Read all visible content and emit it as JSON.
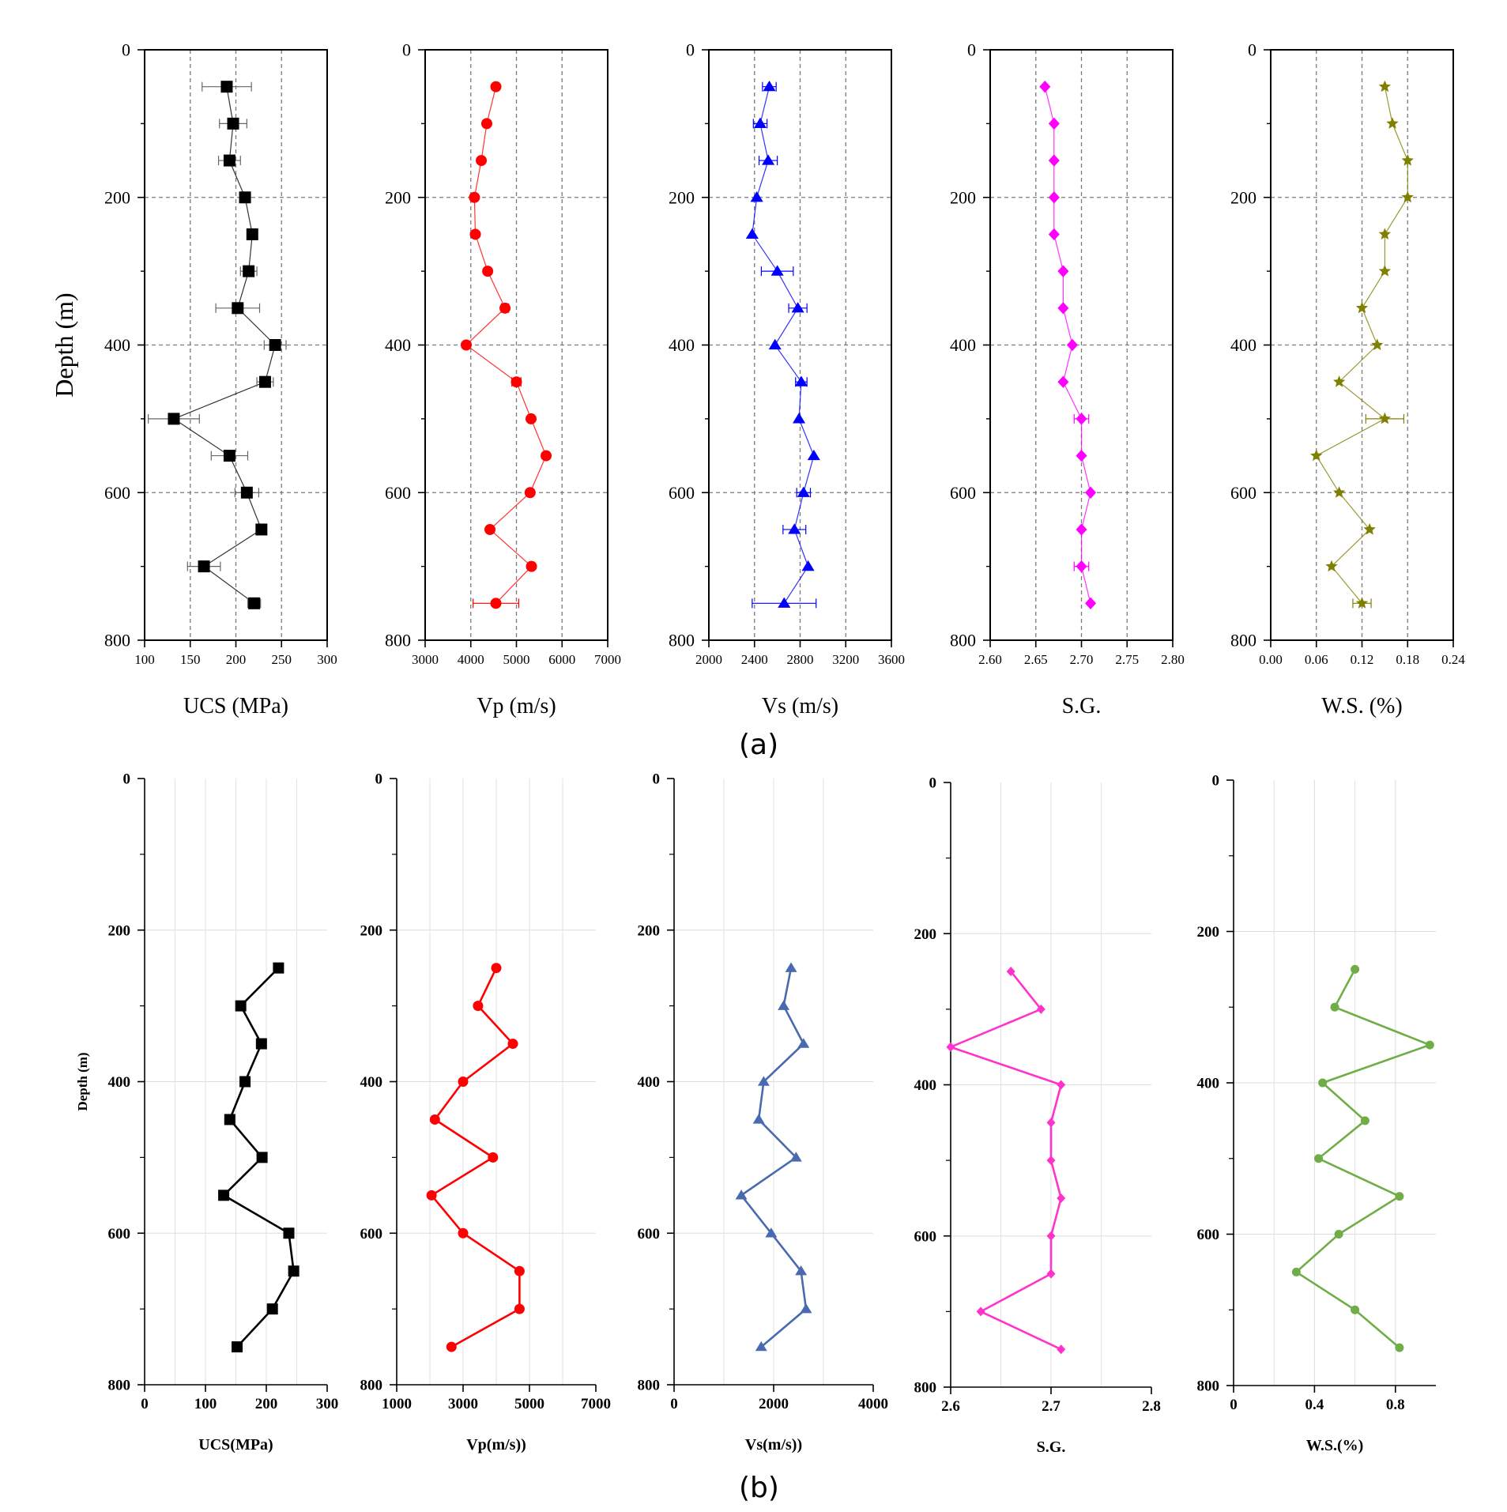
{
  "panel_labels": [
    "(a)",
    "(b)"
  ],
  "chart_data": [
    {
      "type": "scatter",
      "panel": "(a)",
      "name": "UCS",
      "xlabel": "UCS (MPa)",
      "ylabel": "Depth (m)",
      "xlim": [
        100,
        300
      ],
      "ylim": [
        0,
        800
      ],
      "y_inverted": true,
      "xticks": [
        100,
        150,
        200,
        250,
        300
      ],
      "yticks": [
        0,
        200,
        400,
        600,
        800
      ],
      "xtick_labels": [
        "100",
        "150",
        "200",
        "250",
        "300"
      ],
      "grid": "dashed",
      "color": "#000000",
      "marker": "square",
      "error_bars": true,
      "points": [
        {
          "x": 190,
          "y": 50,
          "err": 27
        },
        {
          "x": 197,
          "y": 100,
          "err": 15
        },
        {
          "x": 193,
          "y": 150,
          "err": 12
        },
        {
          "x": 210,
          "y": 200,
          "err": 6
        },
        {
          "x": 218,
          "y": 250,
          "err": 5
        },
        {
          "x": 214,
          "y": 300,
          "err": 9
        },
        {
          "x": 202,
          "y": 350,
          "err": 24
        },
        {
          "x": 243,
          "y": 400,
          "err": 12
        },
        {
          "x": 232,
          "y": 450,
          "err": 9
        },
        {
          "x": 132,
          "y": 500,
          "err": 28
        },
        {
          "x": 193,
          "y": 550,
          "err": 20
        },
        {
          "x": 212,
          "y": 600,
          "err": 13
        },
        {
          "x": 228,
          "y": 650,
          "err": 5
        },
        {
          "x": 165,
          "y": 700,
          "err": 18
        },
        {
          "x": 220,
          "y": 750,
          "err": 7
        }
      ]
    },
    {
      "type": "scatter",
      "panel": "(a)",
      "name": "Vp",
      "xlabel": "Vp (m/s)",
      "ylabel": "",
      "xlim": [
        3000,
        7000
      ],
      "ylim": [
        0,
        800
      ],
      "y_inverted": true,
      "xticks": [
        3000,
        4000,
        5000,
        6000,
        7000
      ],
      "yticks": [
        0,
        200,
        400,
        600,
        800
      ],
      "xtick_labels": [
        "3000",
        "4000",
        "5000",
        "6000",
        "7000"
      ],
      "grid": "dashed",
      "color": "#ff0000",
      "marker": "circle",
      "error_bars": true,
      "points": [
        {
          "x": 4550,
          "y": 50,
          "err": 0
        },
        {
          "x": 4350,
          "y": 100,
          "err": 0
        },
        {
          "x": 4230,
          "y": 150,
          "err": 0
        },
        {
          "x": 4080,
          "y": 200,
          "err": 0
        },
        {
          "x": 4100,
          "y": 250,
          "err": 0
        },
        {
          "x": 4370,
          "y": 300,
          "err": 0
        },
        {
          "x": 4750,
          "y": 350,
          "err": 80
        },
        {
          "x": 3900,
          "y": 400,
          "err": 0
        },
        {
          "x": 5000,
          "y": 450,
          "err": 100
        },
        {
          "x": 5320,
          "y": 500,
          "err": 0
        },
        {
          "x": 5650,
          "y": 550,
          "err": 0
        },
        {
          "x": 5300,
          "y": 600,
          "err": 0
        },
        {
          "x": 4420,
          "y": 650,
          "err": 0
        },
        {
          "x": 5330,
          "y": 700,
          "err": 0
        },
        {
          "x": 4550,
          "y": 750,
          "err": 500
        }
      ]
    },
    {
      "type": "scatter",
      "panel": "(a)",
      "name": "Vs",
      "xlabel": "Vs (m/s)",
      "ylabel": "",
      "xlim": [
        2000,
        3600
      ],
      "ylim": [
        0,
        800
      ],
      "y_inverted": true,
      "xticks": [
        2000,
        2400,
        2800,
        3200,
        3600
      ],
      "yticks": [
        0,
        200,
        400,
        600,
        800
      ],
      "xtick_labels": [
        "2000",
        "2400",
        "2800",
        "3200",
        "3600"
      ],
      "grid": "dashed",
      "color": "#0000ff",
      "marker": "triangle",
      "error_bars": true,
      "points": [
        {
          "x": 2530,
          "y": 50,
          "err": 60
        },
        {
          "x": 2450,
          "y": 100,
          "err": 60
        },
        {
          "x": 2520,
          "y": 150,
          "err": 80
        },
        {
          "x": 2420,
          "y": 200,
          "err": 0
        },
        {
          "x": 2380,
          "y": 250,
          "err": 0
        },
        {
          "x": 2600,
          "y": 300,
          "err": 140
        },
        {
          "x": 2780,
          "y": 350,
          "err": 80
        },
        {
          "x": 2580,
          "y": 400,
          "err": 0
        },
        {
          "x": 2810,
          "y": 450,
          "err": 50
        },
        {
          "x": 2790,
          "y": 500,
          "err": 0
        },
        {
          "x": 2920,
          "y": 550,
          "err": 0
        },
        {
          "x": 2830,
          "y": 600,
          "err": 60
        },
        {
          "x": 2750,
          "y": 650,
          "err": 100
        },
        {
          "x": 2870,
          "y": 700,
          "err": 0
        },
        {
          "x": 2660,
          "y": 750,
          "err": 280
        }
      ]
    },
    {
      "type": "scatter",
      "panel": "(a)",
      "name": "S.G.",
      "xlabel": "S.G.",
      "ylabel": "",
      "xlim": [
        2.6,
        2.8
      ],
      "ylim": [
        0,
        800
      ],
      "y_inverted": true,
      "xticks": [
        2.6,
        2.65,
        2.7,
        2.75,
        2.8
      ],
      "yticks": [
        0,
        200,
        400,
        600,
        800
      ],
      "xtick_labels": [
        "2.60",
        "2.65",
        "2.70",
        "2.75",
        "2.80"
      ],
      "grid": "dashed",
      "color": "#ff00ff",
      "marker": "diamond",
      "error_bars": true,
      "points": [
        {
          "x": 2.66,
          "y": 50,
          "err": 0
        },
        {
          "x": 2.67,
          "y": 100,
          "err": 0
        },
        {
          "x": 2.67,
          "y": 150,
          "err": 0
        },
        {
          "x": 2.67,
          "y": 200,
          "err": 0
        },
        {
          "x": 2.67,
          "y": 250,
          "err": 0
        },
        {
          "x": 2.68,
          "y": 300,
          "err": 0
        },
        {
          "x": 2.68,
          "y": 350,
          "err": 0
        },
        {
          "x": 2.69,
          "y": 400,
          "err": 0
        },
        {
          "x": 2.68,
          "y": 450,
          "err": 0
        },
        {
          "x": 2.7,
          "y": 500,
          "err": 0.008
        },
        {
          "x": 2.7,
          "y": 550,
          "err": 0
        },
        {
          "x": 2.71,
          "y": 600,
          "err": 0
        },
        {
          "x": 2.7,
          "y": 650,
          "err": 0
        },
        {
          "x": 2.7,
          "y": 700,
          "err": 0.008
        },
        {
          "x": 2.71,
          "y": 750,
          "err": 0
        }
      ]
    },
    {
      "type": "scatter",
      "panel": "(a)",
      "name": "W.S.",
      "xlabel": "W.S. (%)",
      "ylabel": "",
      "xlim": [
        0,
        0.24
      ],
      "ylim": [
        0,
        800
      ],
      "y_inverted": true,
      "xticks": [
        0,
        0.06,
        0.12,
        0.18,
        0.24
      ],
      "yticks": [
        0,
        200,
        400,
        600,
        800
      ],
      "xtick_labels": [
        "0.00",
        "0.06",
        "0.12",
        "0.18",
        "0.24"
      ],
      "grid": "dashed",
      "color": "#808000",
      "marker": "star",
      "error_bars": true,
      "points": [
        {
          "x": 0.15,
          "y": 50,
          "err": 0
        },
        {
          "x": 0.16,
          "y": 100,
          "err": 0
        },
        {
          "x": 0.18,
          "y": 150,
          "err": 0
        },
        {
          "x": 0.18,
          "y": 200,
          "err": 0
        },
        {
          "x": 0.15,
          "y": 250,
          "err": 0
        },
        {
          "x": 0.15,
          "y": 300,
          "err": 0
        },
        {
          "x": 0.12,
          "y": 350,
          "err": 0
        },
        {
          "x": 0.14,
          "y": 400,
          "err": 0
        },
        {
          "x": 0.09,
          "y": 450,
          "err": 0
        },
        {
          "x": 0.15,
          "y": 500,
          "err": 0.025
        },
        {
          "x": 0.06,
          "y": 550,
          "err": 0
        },
        {
          "x": 0.09,
          "y": 600,
          "err": 0
        },
        {
          "x": 0.13,
          "y": 650,
          "err": 0
        },
        {
          "x": 0.08,
          "y": 700,
          "err": 0
        },
        {
          "x": 0.12,
          "y": 750,
          "err": 0.012
        }
      ]
    },
    {
      "type": "line",
      "panel": "(b)",
      "name": "UCS",
      "xlabel": "UCS(MPa)",
      "ylabel": "Depth (m)",
      "xlim": [
        0,
        300
      ],
      "ylim": [
        0,
        800
      ],
      "y_inverted": true,
      "xticks": [
        0,
        100,
        200,
        300
      ],
      "yticks": [
        0,
        200,
        400,
        600,
        800
      ],
      "xtick_labels": [
        "0",
        "100",
        "200",
        "300"
      ],
      "grid": "solid",
      "color": "#000000",
      "marker": "square",
      "error_bars": false,
      "points": [
        {
          "x": 220,
          "y": 250
        },
        {
          "x": 158,
          "y": 300
        },
        {
          "x": 192,
          "y": 350
        },
        {
          "x": 165,
          "y": 400
        },
        {
          "x": 140,
          "y": 450
        },
        {
          "x": 193,
          "y": 500
        },
        {
          "x": 130,
          "y": 550
        },
        {
          "x": 237,
          "y": 600
        },
        {
          "x": 245,
          "y": 650
        },
        {
          "x": 210,
          "y": 700
        },
        {
          "x": 152,
          "y": 750
        }
      ]
    },
    {
      "type": "line",
      "panel": "(b)",
      "name": "Vp",
      "xlabel": "Vp(m/s))",
      "ylabel": "",
      "xlim": [
        1000,
        7000
      ],
      "ylim": [
        0,
        800
      ],
      "y_inverted": true,
      "xticks": [
        1000,
        3000,
        5000,
        7000
      ],
      "yticks": [
        0,
        200,
        400,
        600,
        800
      ],
      "xtick_labels": [
        "1000",
        "3000",
        "5000",
        "7000"
      ],
      "grid": "solid",
      "color": "#ff0000",
      "marker": "circle",
      "error_bars": false,
      "points": [
        {
          "x": 4000,
          "y": 250
        },
        {
          "x": 3450,
          "y": 300
        },
        {
          "x": 4500,
          "y": 350
        },
        {
          "x": 3000,
          "y": 400
        },
        {
          "x": 2150,
          "y": 450
        },
        {
          "x": 3900,
          "y": 500
        },
        {
          "x": 2050,
          "y": 550
        },
        {
          "x": 3000,
          "y": 600
        },
        {
          "x": 4700,
          "y": 650
        },
        {
          "x": 4700,
          "y": 700
        },
        {
          "x": 2650,
          "y": 750
        }
      ]
    },
    {
      "type": "line",
      "panel": "(b)",
      "name": "Vs",
      "xlabel": "Vs(m/s))",
      "ylabel": "",
      "xlim": [
        0,
        4000
      ],
      "ylim": [
        0,
        800
      ],
      "y_inverted": true,
      "xticks": [
        0,
        2000,
        4000
      ],
      "yticks": [
        0,
        200,
        400,
        600,
        800
      ],
      "xtick_labels": [
        "0",
        "2000",
        "4000"
      ],
      "grid": "solid",
      "color": "#4a6ab0",
      "marker": "triangle",
      "error_bars": false,
      "points": [
        {
          "x": 2350,
          "y": 250
        },
        {
          "x": 2200,
          "y": 300
        },
        {
          "x": 2600,
          "y": 350
        },
        {
          "x": 1800,
          "y": 400
        },
        {
          "x": 1700,
          "y": 450
        },
        {
          "x": 2450,
          "y": 500
        },
        {
          "x": 1350,
          "y": 550
        },
        {
          "x": 1950,
          "y": 600
        },
        {
          "x": 2550,
          "y": 650
        },
        {
          "x": 2650,
          "y": 700
        },
        {
          "x": 1750,
          "y": 750
        }
      ]
    },
    {
      "type": "line",
      "panel": "(b)",
      "name": "S.G.",
      "xlabel": "S.G.",
      "ylabel": "",
      "xlim": [
        2.6,
        2.8
      ],
      "ylim": [
        0,
        800
      ],
      "y_inverted": true,
      "xticks": [
        2.6,
        2.7,
        2.8
      ],
      "yticks": [
        0,
        200,
        400,
        600,
        800
      ],
      "xtick_labels": [
        "2.6",
        "2.7",
        "2.8"
      ],
      "grid": "solid",
      "color": "#ff33cc",
      "marker": "diamond",
      "error_bars": false,
      "points": [
        {
          "x": 2.66,
          "y": 250
        },
        {
          "x": 2.69,
          "y": 300
        },
        {
          "x": 2.6,
          "y": 350
        },
        {
          "x": 2.71,
          "y": 400
        },
        {
          "x": 2.7,
          "y": 450
        },
        {
          "x": 2.7,
          "y": 500
        },
        {
          "x": 2.71,
          "y": 550
        },
        {
          "x": 2.7,
          "y": 600
        },
        {
          "x": 2.7,
          "y": 650
        },
        {
          "x": 2.63,
          "y": 700
        },
        {
          "x": 2.71,
          "y": 750
        }
      ]
    },
    {
      "type": "line",
      "panel": "(b)",
      "name": "W.S.",
      "xlabel": "W.S.(%)",
      "ylabel": "",
      "xlim": [
        0,
        1
      ],
      "ylim": [
        0,
        800
      ],
      "y_inverted": true,
      "xticks": [
        0,
        0.4,
        0.8
      ],
      "yticks": [
        0,
        200,
        400,
        600,
        800
      ],
      "xtick_labels": [
        "0",
        "0.4",
        "0.8"
      ],
      "grid": "solid",
      "color": "#70ad47",
      "marker": "circle",
      "error_bars": false,
      "points": [
        {
          "x": 0.6,
          "y": 250
        },
        {
          "x": 0.5,
          "y": 300
        },
        {
          "x": 0.97,
          "y": 350
        },
        {
          "x": 0.44,
          "y": 400
        },
        {
          "x": 0.65,
          "y": 450
        },
        {
          "x": 0.42,
          "y": 500
        },
        {
          "x": 0.82,
          "y": 550
        },
        {
          "x": 0.52,
          "y": 600
        },
        {
          "x": 0.31,
          "y": 650
        },
        {
          "x": 0.6,
          "y": 700
        },
        {
          "x": 0.82,
          "y": 750
        }
      ]
    }
  ]
}
